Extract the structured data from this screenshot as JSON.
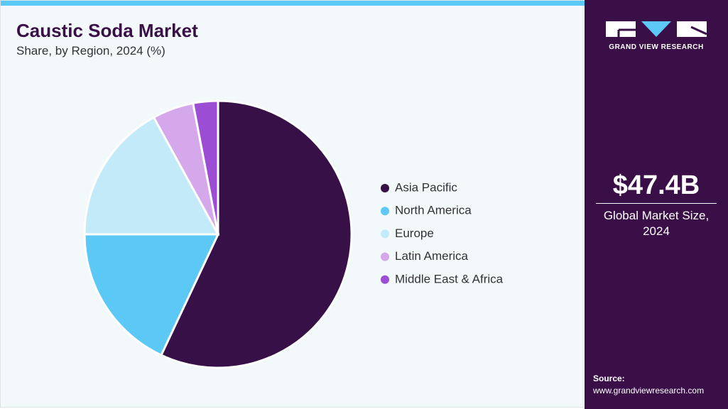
{
  "chart_data": {
    "type": "pie",
    "title": "Caustic Soda Market",
    "subtitle": "Share, by Region, 2024 (%)",
    "categories": [
      "Asia Pacific",
      "North America",
      "Europe",
      "Latin America",
      "Middle East & Africa"
    ],
    "values": [
      57,
      18,
      17,
      5,
      3
    ],
    "colors": [
      "#371047",
      "#5bc8f5",
      "#c2eaf8",
      "#d5a8ec",
      "#9b4dd4"
    ]
  },
  "sidebar": {
    "brand": "GRAND VIEW RESEARCH",
    "market_size": "$47.4B",
    "market_size_label": "Global Market Size, 2024",
    "source_label": "Source:",
    "source_url": "www.grandviewresearch.com"
  }
}
